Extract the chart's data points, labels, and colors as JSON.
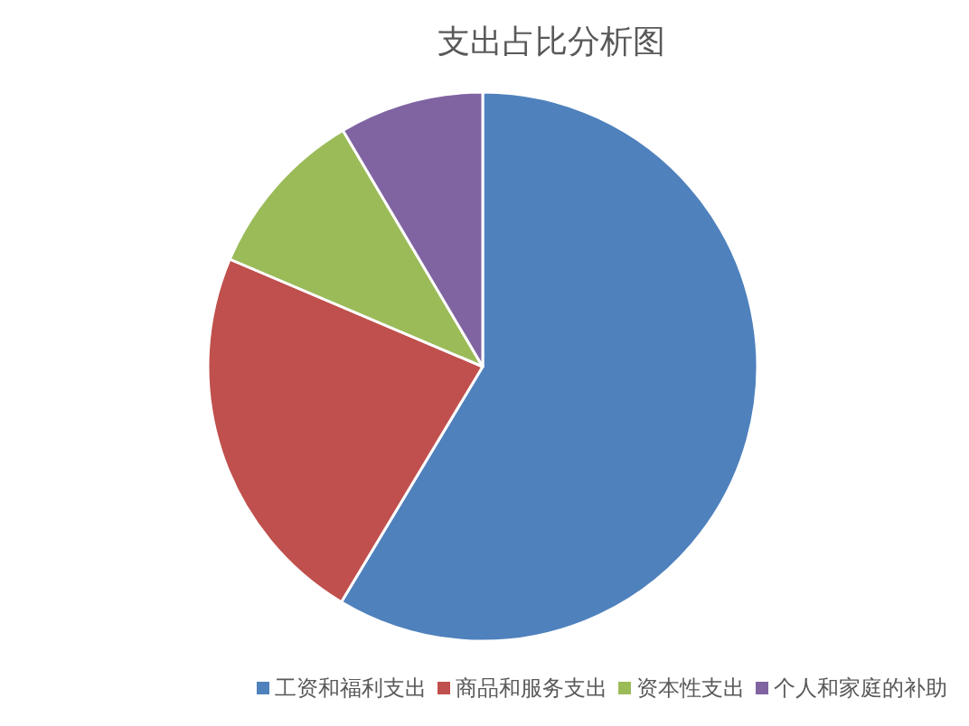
{
  "chart_data": {
    "type": "pie",
    "title": "支出占比分析图",
    "categories": [
      "工资和福利支出",
      "商品和服务支出",
      "资本性支出",
      "个人和家庭的补助"
    ],
    "values": [
      58.6,
      22.8,
      10.1,
      8.5
    ],
    "colors": [
      "#4f81bd",
      "#c0504d",
      "#9bbb59",
      "#8064a2"
    ],
    "legend": "bottom"
  }
}
